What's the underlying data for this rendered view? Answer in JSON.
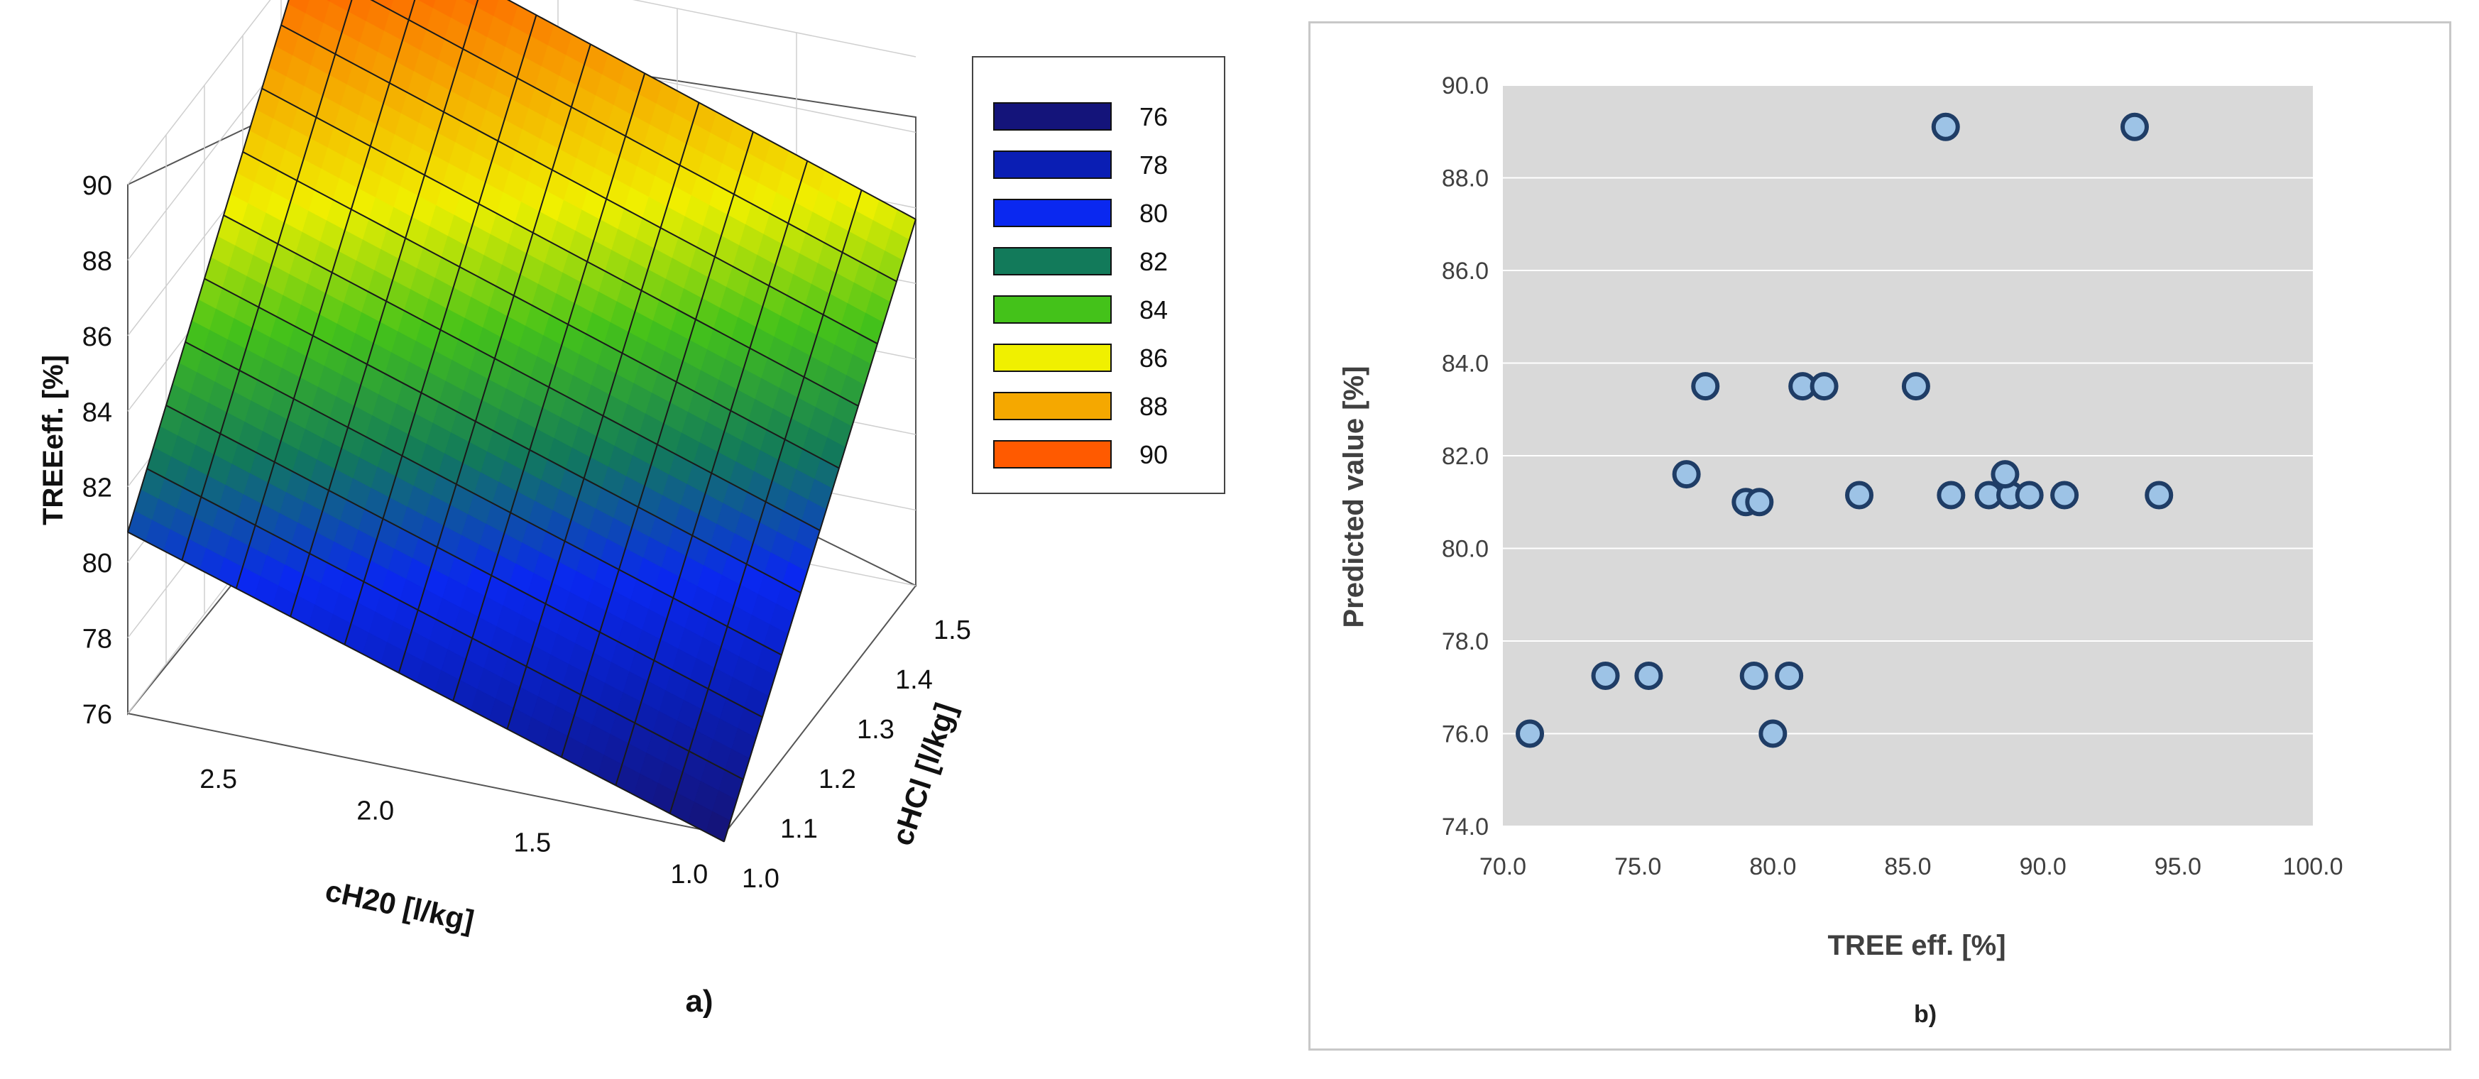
{
  "chart_data": [
    {
      "type": "surface3d",
      "panel_label": "a)",
      "zlabel": "TREEeff. [%]",
      "xlabel": "cH20 [l/kg]",
      "ylabel": "cHCl [l/kg]",
      "z_ticks": [
        "76",
        "78",
        "80",
        "82",
        "84",
        "86",
        "88",
        "90"
      ],
      "x_ticks": [
        "2.5",
        "2.0",
        "1.5",
        "1.0"
      ],
      "y_ticks": [
        "1.0",
        "1.1",
        "1.2",
        "1.3",
        "1.4",
        "1.5"
      ],
      "xlim": [
        0.9,
        2.8
      ],
      "ylim": [
        1.0,
        1.5
      ],
      "zlim": [
        76,
        90
      ],
      "corner_values": {
        "cH20_2.8_cHCl_1.0": 80.8,
        "cH20_0.9_cHCl_1.0": 75.8,
        "cH20_2.8_cHCl_1.5": 91.0,
        "cH20_0.9_cHCl_1.5": 85.7
      },
      "legend": [
        {
          "label": "76",
          "color": "#14147a"
        },
        {
          "label": "78",
          "color": "#0a1eb4"
        },
        {
          "label": "80",
          "color": "#0a28f0"
        },
        {
          "label": "82",
          "color": "#127a5a"
        },
        {
          "label": "84",
          "color": "#44c21a"
        },
        {
          "label": "86",
          "color": "#f0f000"
        },
        {
          "label": "88",
          "color": "#f5a800"
        },
        {
          "label": "90",
          "color": "#ff5a00"
        }
      ]
    },
    {
      "type": "scatter",
      "panel_label": "b)",
      "xlabel": "TREE eff. [%]",
      "ylabel": "Predicted value [%]",
      "xlim": [
        70,
        100
      ],
      "ylim": [
        74,
        90
      ],
      "x_ticks": [
        "70.0",
        "75.0",
        "80.0",
        "85.0",
        "90.0",
        "95.0",
        "100.0"
      ],
      "y_ticks": [
        "74.0",
        "76.0",
        "78.0",
        "80.0",
        "82.0",
        "84.0",
        "86.0",
        "88.0",
        "90.0"
      ],
      "points": [
        {
          "x": 71.0,
          "y": 76.0
        },
        {
          "x": 80.0,
          "y": 76.0
        },
        {
          "x": 73.8,
          "y": 77.25
        },
        {
          "x": 75.4,
          "y": 77.25
        },
        {
          "x": 79.3,
          "y": 77.25
        },
        {
          "x": 80.6,
          "y": 77.25
        },
        {
          "x": 79.0,
          "y": 81.0
        },
        {
          "x": 79.5,
          "y": 81.0
        },
        {
          "x": 83.2,
          "y": 81.15
        },
        {
          "x": 86.6,
          "y": 81.15
        },
        {
          "x": 88.0,
          "y": 81.15
        },
        {
          "x": 88.8,
          "y": 81.15
        },
        {
          "x": 89.5,
          "y": 81.15
        },
        {
          "x": 90.8,
          "y": 81.15
        },
        {
          "x": 94.3,
          "y": 81.15
        },
        {
          "x": 76.8,
          "y": 81.6
        },
        {
          "x": 88.6,
          "y": 81.6
        },
        {
          "x": 77.5,
          "y": 83.5
        },
        {
          "x": 81.1,
          "y": 83.5
        },
        {
          "x": 81.9,
          "y": 83.5
        },
        {
          "x": 85.3,
          "y": 83.5
        },
        {
          "x": 86.4,
          "y": 89.1
        },
        {
          "x": 93.4,
          "y": 89.1
        }
      ]
    }
  ]
}
